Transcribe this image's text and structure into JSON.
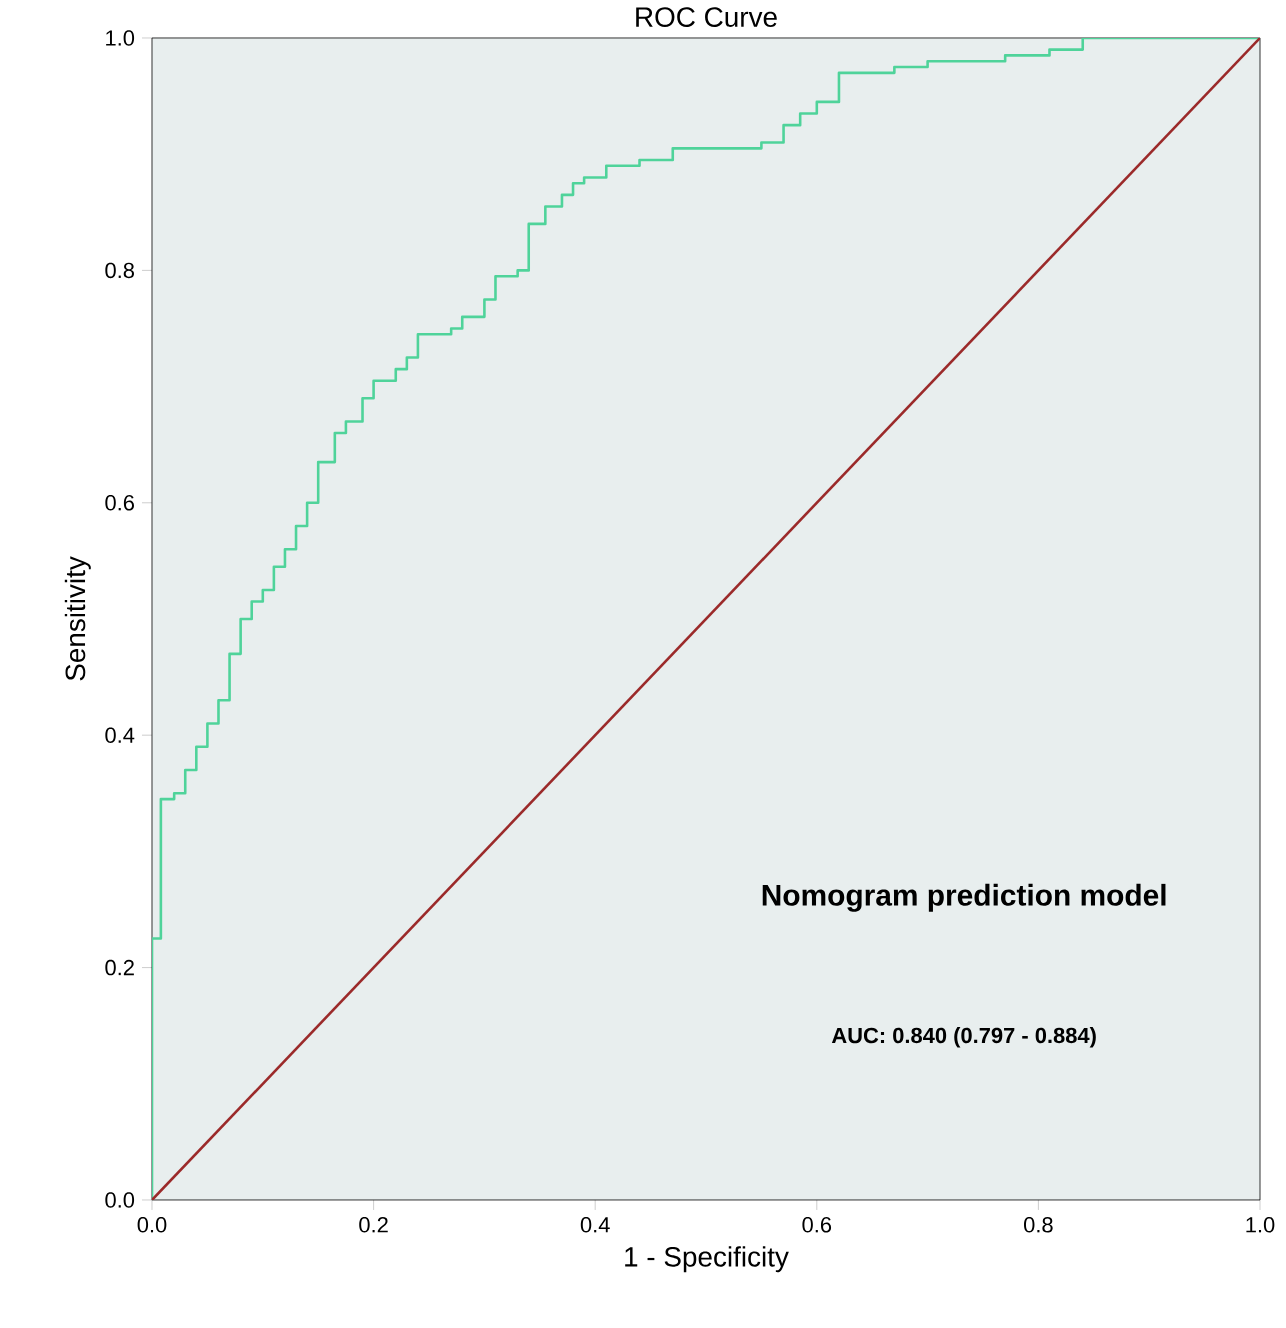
{
  "chart_data": {
    "type": "step",
    "title": "ROC Curve",
    "xlabel": "1 - Specificity",
    "ylabel": "Sensitivity",
    "xlim": [
      0,
      1
    ],
    "ylim": [
      0,
      1
    ],
    "xticks": [
      {
        "value": 0,
        "label": "0.0"
      },
      {
        "value": 0.2,
        "label": "0.2"
      },
      {
        "value": 0.4,
        "label": "0.4"
      },
      {
        "value": 0.6,
        "label": "0.6"
      },
      {
        "value": 0.8,
        "label": "0.8"
      },
      {
        "value": 1,
        "label": "1.0"
      }
    ],
    "yticks": [
      {
        "value": 0,
        "label": "0.0"
      },
      {
        "value": 0.2,
        "label": "0.2"
      },
      {
        "value": 0.4,
        "label": "0.4"
      },
      {
        "value": 0.6,
        "label": "0.6"
      },
      {
        "value": 0.8,
        "label": "0.8"
      },
      {
        "value": 1,
        "label": "1.0"
      }
    ],
    "annotations": [
      "**Nomogram prediction model**",
      "**AUC: 0.840 (0.797 - 0.884)**"
    ],
    "series": [
      {
        "color": "#4fd39a",
        "x": [
          0,
          0,
          0.008,
          0.02,
          0.03,
          0.04,
          0.05,
          0.06,
          0.07,
          0.08,
          0.09,
          0.1,
          0.11,
          0.12,
          0.13,
          0.14,
          0.15,
          0.165,
          0.175,
          0.19,
          0.2,
          0.22,
          0.23,
          0.24,
          0.27,
          0.28,
          0.3,
          0.31,
          0.33,
          0.34,
          0.355,
          0.37,
          0.38,
          0.39,
          0.41,
          0.44,
          0.47,
          0.55,
          0.57,
          0.585,
          0.6,
          0.62,
          0.67,
          0.7,
          0.77,
          0.81,
          0.84,
          1
        ],
        "values": [
          0,
          0.225,
          0.345,
          0.35,
          0.37,
          0.39,
          0.41,
          0.43,
          0.47,
          0.5,
          0.515,
          0.525,
          0.545,
          0.56,
          0.58,
          0.6,
          0.635,
          0.66,
          0.67,
          0.69,
          0.705,
          0.715,
          0.725,
          0.745,
          0.75,
          0.76,
          0.775,
          0.795,
          0.8,
          0.84,
          0.855,
          0.865,
          0.875,
          0.88,
          0.89,
          0.895,
          0.905,
          0.91,
          0.925,
          0.935,
          0.945,
          0.97,
          0.975,
          0.98,
          0.985,
          0.99,
          1.0,
          1.0
        ]
      },
      {
        "type": "line",
        "color": "#9b2a2a",
        "x": [
          0,
          1
        ],
        "values": [
          0,
          1
        ]
      }
    ]
  }
}
